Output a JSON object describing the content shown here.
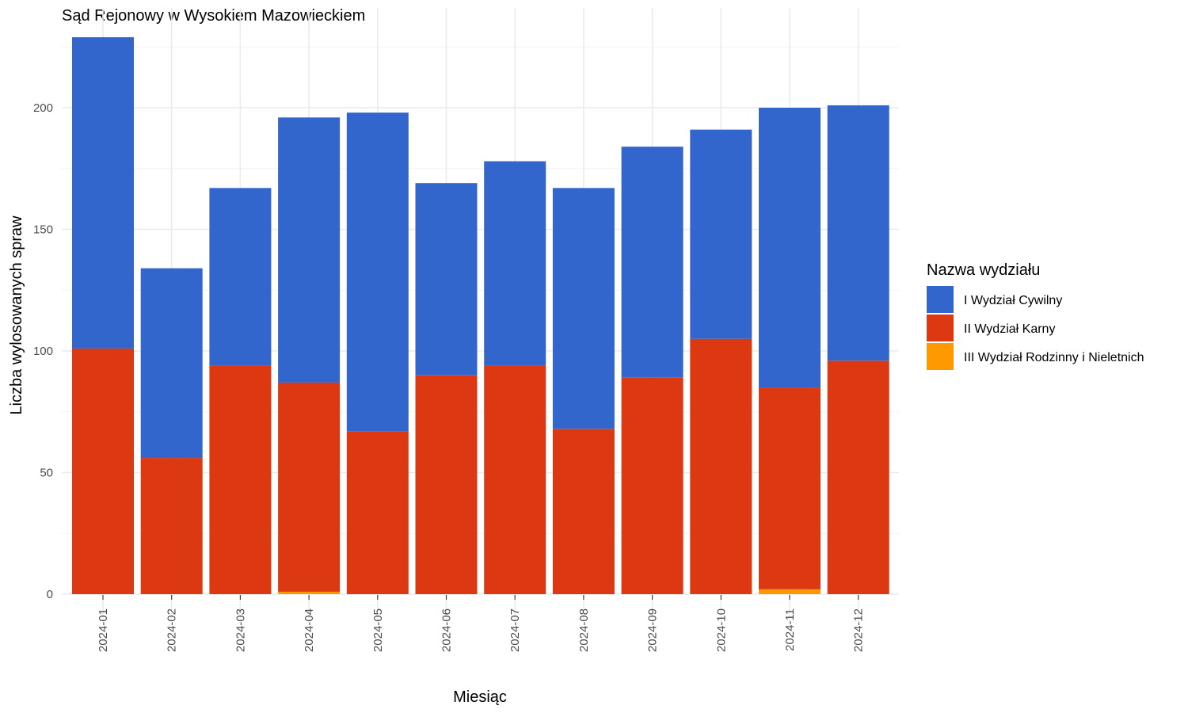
{
  "chart_data": {
    "type": "bar",
    "stacked": true,
    "title": "Sąd Rejonowy w Wysokiem Mazowieckiem",
    "xlabel": "Miesiąc",
    "ylabel": "Liczba wylosowanych spraw",
    "ylim": [
      0,
      230
    ],
    "yticks": [
      0,
      50,
      100,
      150,
      200
    ],
    "categories": [
      "2024-01",
      "2024-02",
      "2024-03",
      "2024-04",
      "2024-05",
      "2024-06",
      "2024-07",
      "2024-08",
      "2024-09",
      "2024-10",
      "2024-11",
      "2024-12"
    ],
    "legend_title": "Nazwa wydziału",
    "legend_position": "right",
    "grid": true,
    "series": [
      {
        "name": "III Wydział Rodzinny i Nieletnich",
        "color": "#ff9900",
        "values": [
          0,
          0,
          0,
          1,
          0,
          0,
          0,
          0,
          0,
          0,
          2,
          0
        ]
      },
      {
        "name": "II Wydział Karny",
        "color": "#dc3912",
        "values": [
          101,
          56,
          94,
          86,
          67,
          90,
          94,
          68,
          89,
          105,
          83,
          96
        ]
      },
      {
        "name": "I Wydział Cywilny",
        "color": "#3366cc",
        "values": [
          128,
          78,
          73,
          109,
          131,
          79,
          84,
          99,
          95,
          86,
          115,
          105
        ]
      }
    ]
  }
}
